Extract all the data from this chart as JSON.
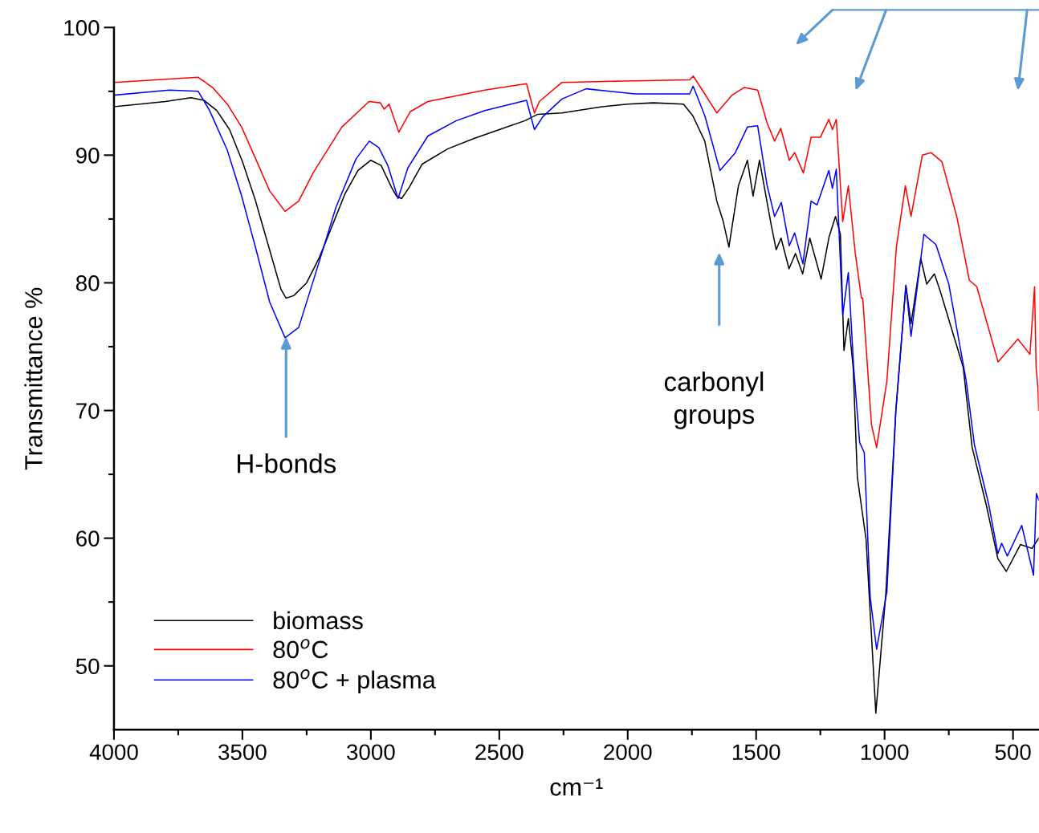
{
  "chart_data": {
    "type": "line",
    "xlabel": "cm⁻¹",
    "ylabel": "Transmittance %",
    "xlim": [
      4000,
      400
    ],
    "ylim": [
      45,
      100
    ],
    "xticks": [
      4000,
      {
        "value": 3750,
        "label": null
      },
      3500,
      {
        "value": 3250,
        "label": null
      },
      3000,
      {
        "value": 2750,
        "label": null
      },
      2500,
      {
        "value": 2250,
        "label": null
      },
      2000,
      {
        "value": 1750,
        "label": null
      },
      1500,
      {
        "value": 1250,
        "label": null
      },
      1000,
      {
        "value": 750,
        "label": null
      },
      500
    ],
    "yticks": [
      50,
      {
        "value": 55,
        "label": null
      },
      60,
      {
        "value": 65,
        "label": null
      },
      70,
      {
        "value": 75,
        "label": null
      },
      80,
      {
        "value": 85,
        "label": null
      },
      90,
      {
        "value": 95,
        "label": null
      },
      100
    ],
    "grid": false,
    "legend": "bottom left",
    "marker": "none",
    "line_style": "solid",
    "series": [
      {
        "name": "biomass",
        "color": "#000000",
        "x": [
          4000,
          3800,
          3700,
          3650,
          3600,
          3550,
          3500,
          3450,
          3400,
          3350,
          3330,
          3300,
          3250,
          3200,
          3150,
          3100,
          3050,
          3000,
          2960,
          2920,
          2900,
          2880,
          2850,
          2800,
          2700,
          2600,
          2500,
          2400,
          2350,
          2256,
          2100,
          2000,
          1900,
          1783,
          1747,
          1700,
          1653,
          1628,
          1606,
          1569,
          1534,
          1512,
          1487,
          1441,
          1422,
          1403,
          1372,
          1347,
          1319,
          1291,
          1247,
          1216,
          1191,
          1172,
          1158,
          1141,
          1122,
          1106,
          1072,
          1034,
          995,
          956,
          917,
          897,
          859,
          836,
          806,
          784,
          694,
          659,
          604,
          559,
          526,
          471,
          426,
          400
        ],
        "values": [
          93.8,
          94.2,
          94.5,
          94.3,
          93.5,
          92,
          89.5,
          86.5,
          83,
          79.5,
          78.8,
          79.0,
          80,
          82,
          84.5,
          87,
          88.8,
          89.6,
          89.2,
          87.5,
          86.8,
          86.6,
          87.5,
          89.3,
          90.5,
          91.3,
          92.0,
          92.7,
          93.2,
          93.3,
          93.8,
          94.0,
          94.1,
          94.0,
          93.1,
          91.1,
          86.4,
          84.8,
          82.8,
          87.6,
          89.6,
          86.8,
          89.6,
          84.5,
          82.6,
          83.5,
          81.1,
          82.3,
          80.7,
          83.5,
          80.3,
          83.6,
          85.2,
          83.8,
          74.7,
          77.2,
          73.3,
          64.8,
          59.9,
          46.3,
          55.7,
          70.0,
          79.8,
          76.8,
          81.9,
          79.9,
          80.7,
          79.4,
          73.4,
          67.1,
          62.6,
          58.4,
          57.4,
          59.5,
          59.2,
          60
        ]
      },
      {
        "name": "80$^{o}$C",
        "color": "#ff0000",
        "x": [
          4000,
          3672,
          3616,
          3559,
          3503,
          3448,
          3394,
          3334,
          3281,
          3225,
          3113,
          3007,
          2963,
          2948,
          2929,
          2891,
          2847,
          2778,
          2556,
          2394,
          2363,
          2344,
          2256,
          2019,
          1759,
          1745,
          1700,
          1653,
          1594,
          1547,
          1494,
          1457,
          1428,
          1404,
          1371,
          1350,
          1316,
          1286,
          1250,
          1217,
          1203,
          1188,
          1163,
          1141,
          1114,
          1090,
          1085,
          1051,
          1031,
          991,
          954,
          919,
          897,
          853,
          819,
          777,
          719,
          670,
          641,
          575,
          558,
          481,
          434,
          416,
          410,
          403,
          400
        ],
        "values": [
          95.7,
          96.1,
          95.3,
          94.0,
          92.2,
          89.7,
          87.2,
          85.6,
          86.4,
          88.6,
          92.2,
          94.2,
          94.1,
          93.6,
          94.0,
          91.8,
          93.4,
          94.2,
          95.1,
          95.6,
          93.3,
          94.2,
          95.7,
          95.8,
          95.9,
          96.2,
          94.8,
          93.3,
          94.7,
          95.3,
          95.1,
          92.5,
          91.1,
          92.1,
          89.6,
          90.2,
          88.6,
          91.4,
          91.4,
          92.8,
          92.0,
          92.8,
          84.8,
          87.6,
          82.3,
          78.8,
          78.8,
          68.9,
          67.1,
          72.3,
          82.8,
          87.6,
          85.2,
          90.0,
          90.2,
          89.5,
          85.2,
          80.2,
          79.7,
          75.0,
          73.8,
          75.6,
          74.4,
          79.7,
          73.3,
          71.8,
          70
        ]
      },
      {
        "name": "80$^{o}$C + plasma",
        "color": "#0000ff",
        "x": [
          4000,
          3784,
          3672,
          3628,
          3559,
          3503,
          3448,
          3394,
          3334,
          3281,
          3225,
          3136,
          3058,
          3006,
          2969,
          2934,
          2894,
          2856,
          2778,
          2667,
          2556,
          2394,
          2363,
          2331,
          2256,
          2162,
          1972,
          1759,
          1745,
          1700,
          1641,
          1581,
          1534,
          1494,
          1457,
          1428,
          1402,
          1371,
          1350,
          1318,
          1286,
          1263,
          1217,
          1203,
          1188,
          1163,
          1141,
          1120,
          1097,
          1079,
          1056,
          1031,
          991,
          956,
          917,
          897,
          847,
          800,
          750,
          682,
          650,
          594,
          559,
          544,
          522,
          466,
          420,
          409,
          400
        ],
        "values": [
          94.7,
          95.1,
          95.0,
          93.5,
          90.4,
          86.8,
          82.7,
          78.5,
          75.7,
          76.5,
          80.1,
          85.9,
          89.7,
          91.1,
          90.6,
          89.2,
          86.6,
          89.0,
          91.5,
          92.7,
          93.5,
          94.3,
          92.0,
          93.0,
          94.4,
          95.2,
          94.8,
          94.8,
          95.4,
          93.1,
          88.8,
          90.2,
          92.2,
          92.3,
          87.6,
          85.2,
          86.3,
          82.9,
          83.9,
          81.5,
          86.4,
          86.1,
          88.8,
          87.4,
          88.9,
          77.5,
          80.8,
          73.3,
          67.5,
          66.7,
          55.4,
          51.3,
          55.8,
          70.0,
          79.8,
          75.8,
          83.8,
          83.0,
          79.9,
          72.3,
          67.3,
          62.6,
          58.8,
          59.6,
          58.6,
          61.0,
          57.1,
          63.5,
          63
        ]
      }
    ],
    "annotations": [
      {
        "text": "H-bonds",
        "x": 3330,
        "y": 75.8
      },
      "carbonyl\ngroups"
    ]
  }
}
